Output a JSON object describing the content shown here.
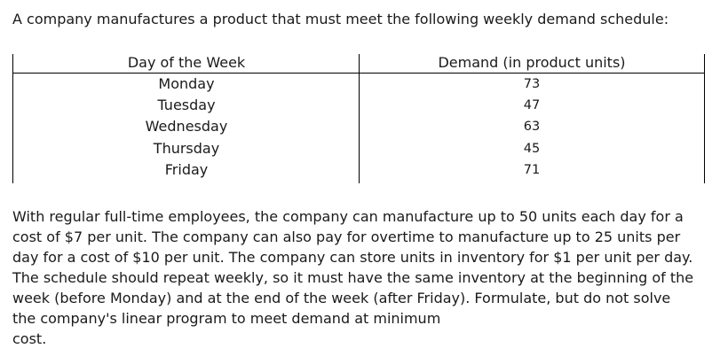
{
  "intro": "A company manufactures a product that must meet the following weekly demand schedule:",
  "table": {
    "headers": {
      "day": "Day of the Week",
      "demand": "Demand (in product units)"
    },
    "rows": [
      {
        "day": "Monday",
        "demand": "73"
      },
      {
        "day": "Tuesday",
        "demand": "47"
      },
      {
        "day": "Wednesday",
        "demand": "63"
      },
      {
        "day": "Thursday",
        "demand": "45"
      },
      {
        "day": "Friday",
        "demand": "71"
      }
    ]
  },
  "paragraph_lines": [
    "With regular full-time employees, the company can manufacture up to 50 units each day for a",
    "cost of $7 per unit. The company can also pay for overtime to manufacture up to 25 units per",
    "day for a cost of $10 per unit. The company can store units in inventory for $1 per unit per day.",
    "The schedule should repeat weekly, so it must have the same inventory at the beginning of the",
    "week (before Monday) and at the end of the week (after Friday). Formulate, but do not solve",
    "the company's linear program to meet demand at minimum",
    "cost."
  ]
}
